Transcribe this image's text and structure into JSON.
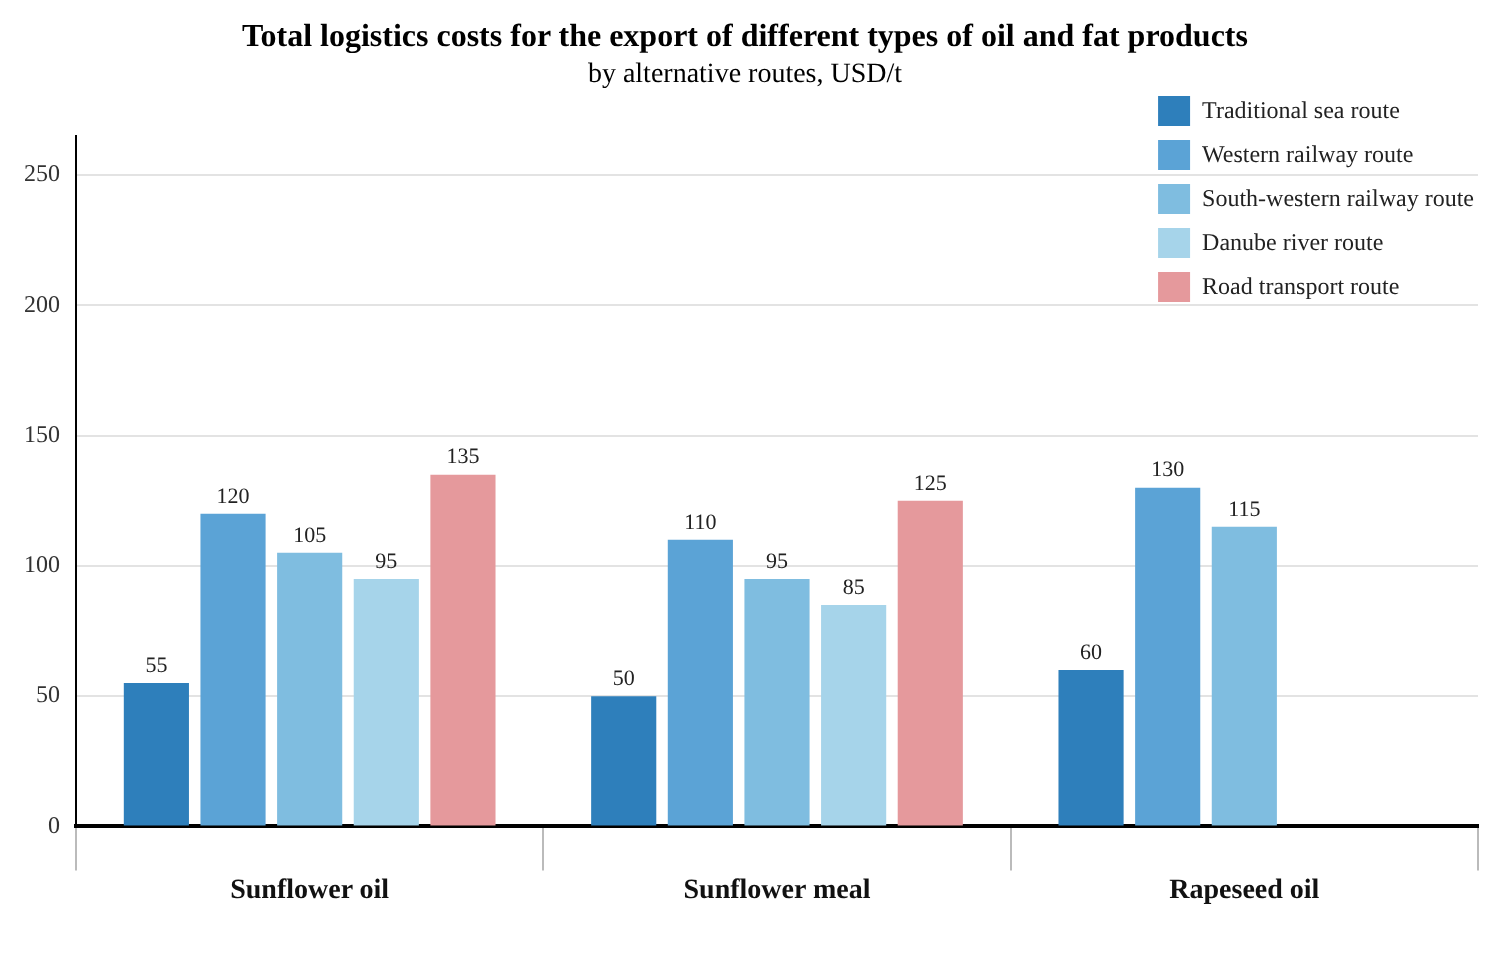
{
  "chart_data": {
    "type": "bar",
    "title": "Total logistics costs for the export of different types of oil and fat products",
    "subtitle": "by alternative routes, USD/t",
    "categories": [
      "Sunflower oil",
      "Sunflower meal",
      "Rapeseed oil"
    ],
    "series": [
      {
        "name": "Traditional sea route",
        "color": "#2e7fbb",
        "values": [
          55,
          50,
          60
        ]
      },
      {
        "name": "Western railway route",
        "color": "#5ba3d6",
        "values": [
          120,
          110,
          130
        ]
      },
      {
        "name": "South-western railway route",
        "color": "#7fbde0",
        "values": [
          105,
          95,
          115
        ]
      },
      {
        "name": "Danube river route",
        "color": "#a6d4ea",
        "values": [
          95,
          85,
          null
        ]
      },
      {
        "name": "Road transport route",
        "color": "#e5999c",
        "values": [
          135,
          125,
          null
        ]
      }
    ],
    "ylim": [
      0,
      265
    ],
    "yticks": [
      0,
      50,
      100,
      150,
      200,
      250
    ],
    "grid": "y",
    "legend": "top right",
    "data_labels": true
  }
}
